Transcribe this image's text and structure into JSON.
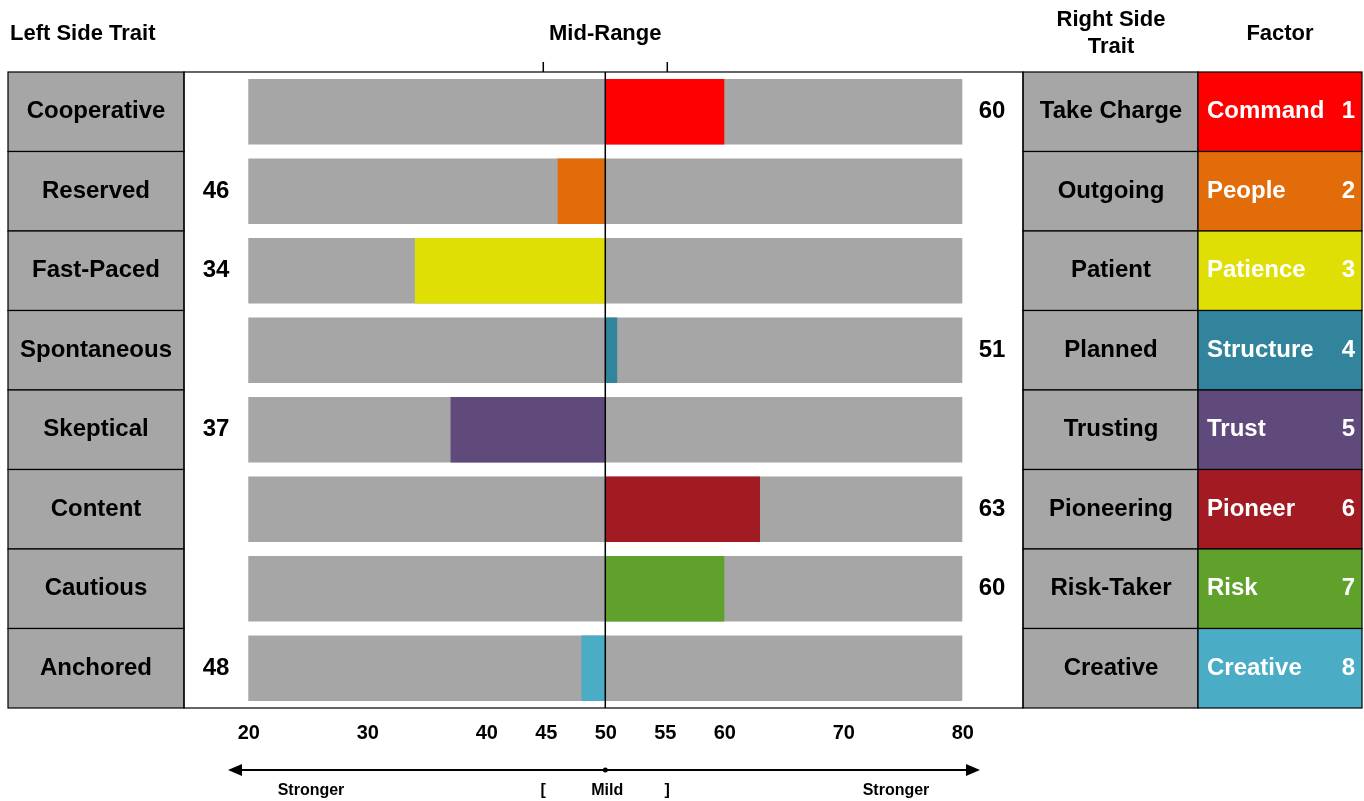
{
  "chart_data": {
    "type": "bar",
    "orientation": "horizontal",
    "categories": [
      "Cooperative",
      "Reserved",
      "Fast-Paced",
      "Spontaneous",
      "Skeptical",
      "Content",
      "Cautious",
      "Anchored"
    ],
    "series": [
      {
        "color": "#a6a6a6",
        "base": [
          20,
          20,
          20,
          20,
          20,
          20,
          20,
          20
        ],
        "values": [
          60,
          60,
          60,
          60,
          60,
          60,
          60,
          60
        ]
      },
      {
        "colors": [
          "#ff0000",
          "#e36c0a",
          "#dfdf05",
          "#31849b",
          "#604a7b",
          "#a21a22",
          "#5fa12a",
          "#4bacc6"
        ],
        "base": [
          50,
          50,
          50,
          50,
          50,
          50,
          50,
          50
        ],
        "values": [
          10,
          -4,
          -16,
          1,
          -13,
          13,
          10,
          -2
        ]
      }
    ],
    "xlim": [
      14.6,
      85.1
    ],
    "xticks": [
      20,
      30,
      40,
      45,
      50,
      55,
      60,
      70,
      80
    ],
    "ref_lines": [
      {
        "axis": "x",
        "value": 50,
        "color": "#000000"
      }
    ],
    "annotations": [
      "Left Side Trait",
      "Right Side Trait",
      "Factor",
      "Mid-Range",
      "Take Charge",
      "Outgoing",
      "Patient",
      "Planned",
      "Trusting",
      "Pioneering",
      "Risk-Taker",
      "Creative",
      "Command",
      "People",
      "Patience",
      "Structure",
      "Trust",
      "Pioneer",
      "Risk",
      "Creative",
      "1",
      "2",
      "3",
      "4",
      "5",
      "6",
      "7",
      "8",
      "60",
      "46",
      "34",
      "51",
      "37",
      "63",
      "60",
      "48",
      "Stronger",
      "[",
      "Mild",
      "]",
      "Stronger"
    ],
    "grid": false
  }
}
